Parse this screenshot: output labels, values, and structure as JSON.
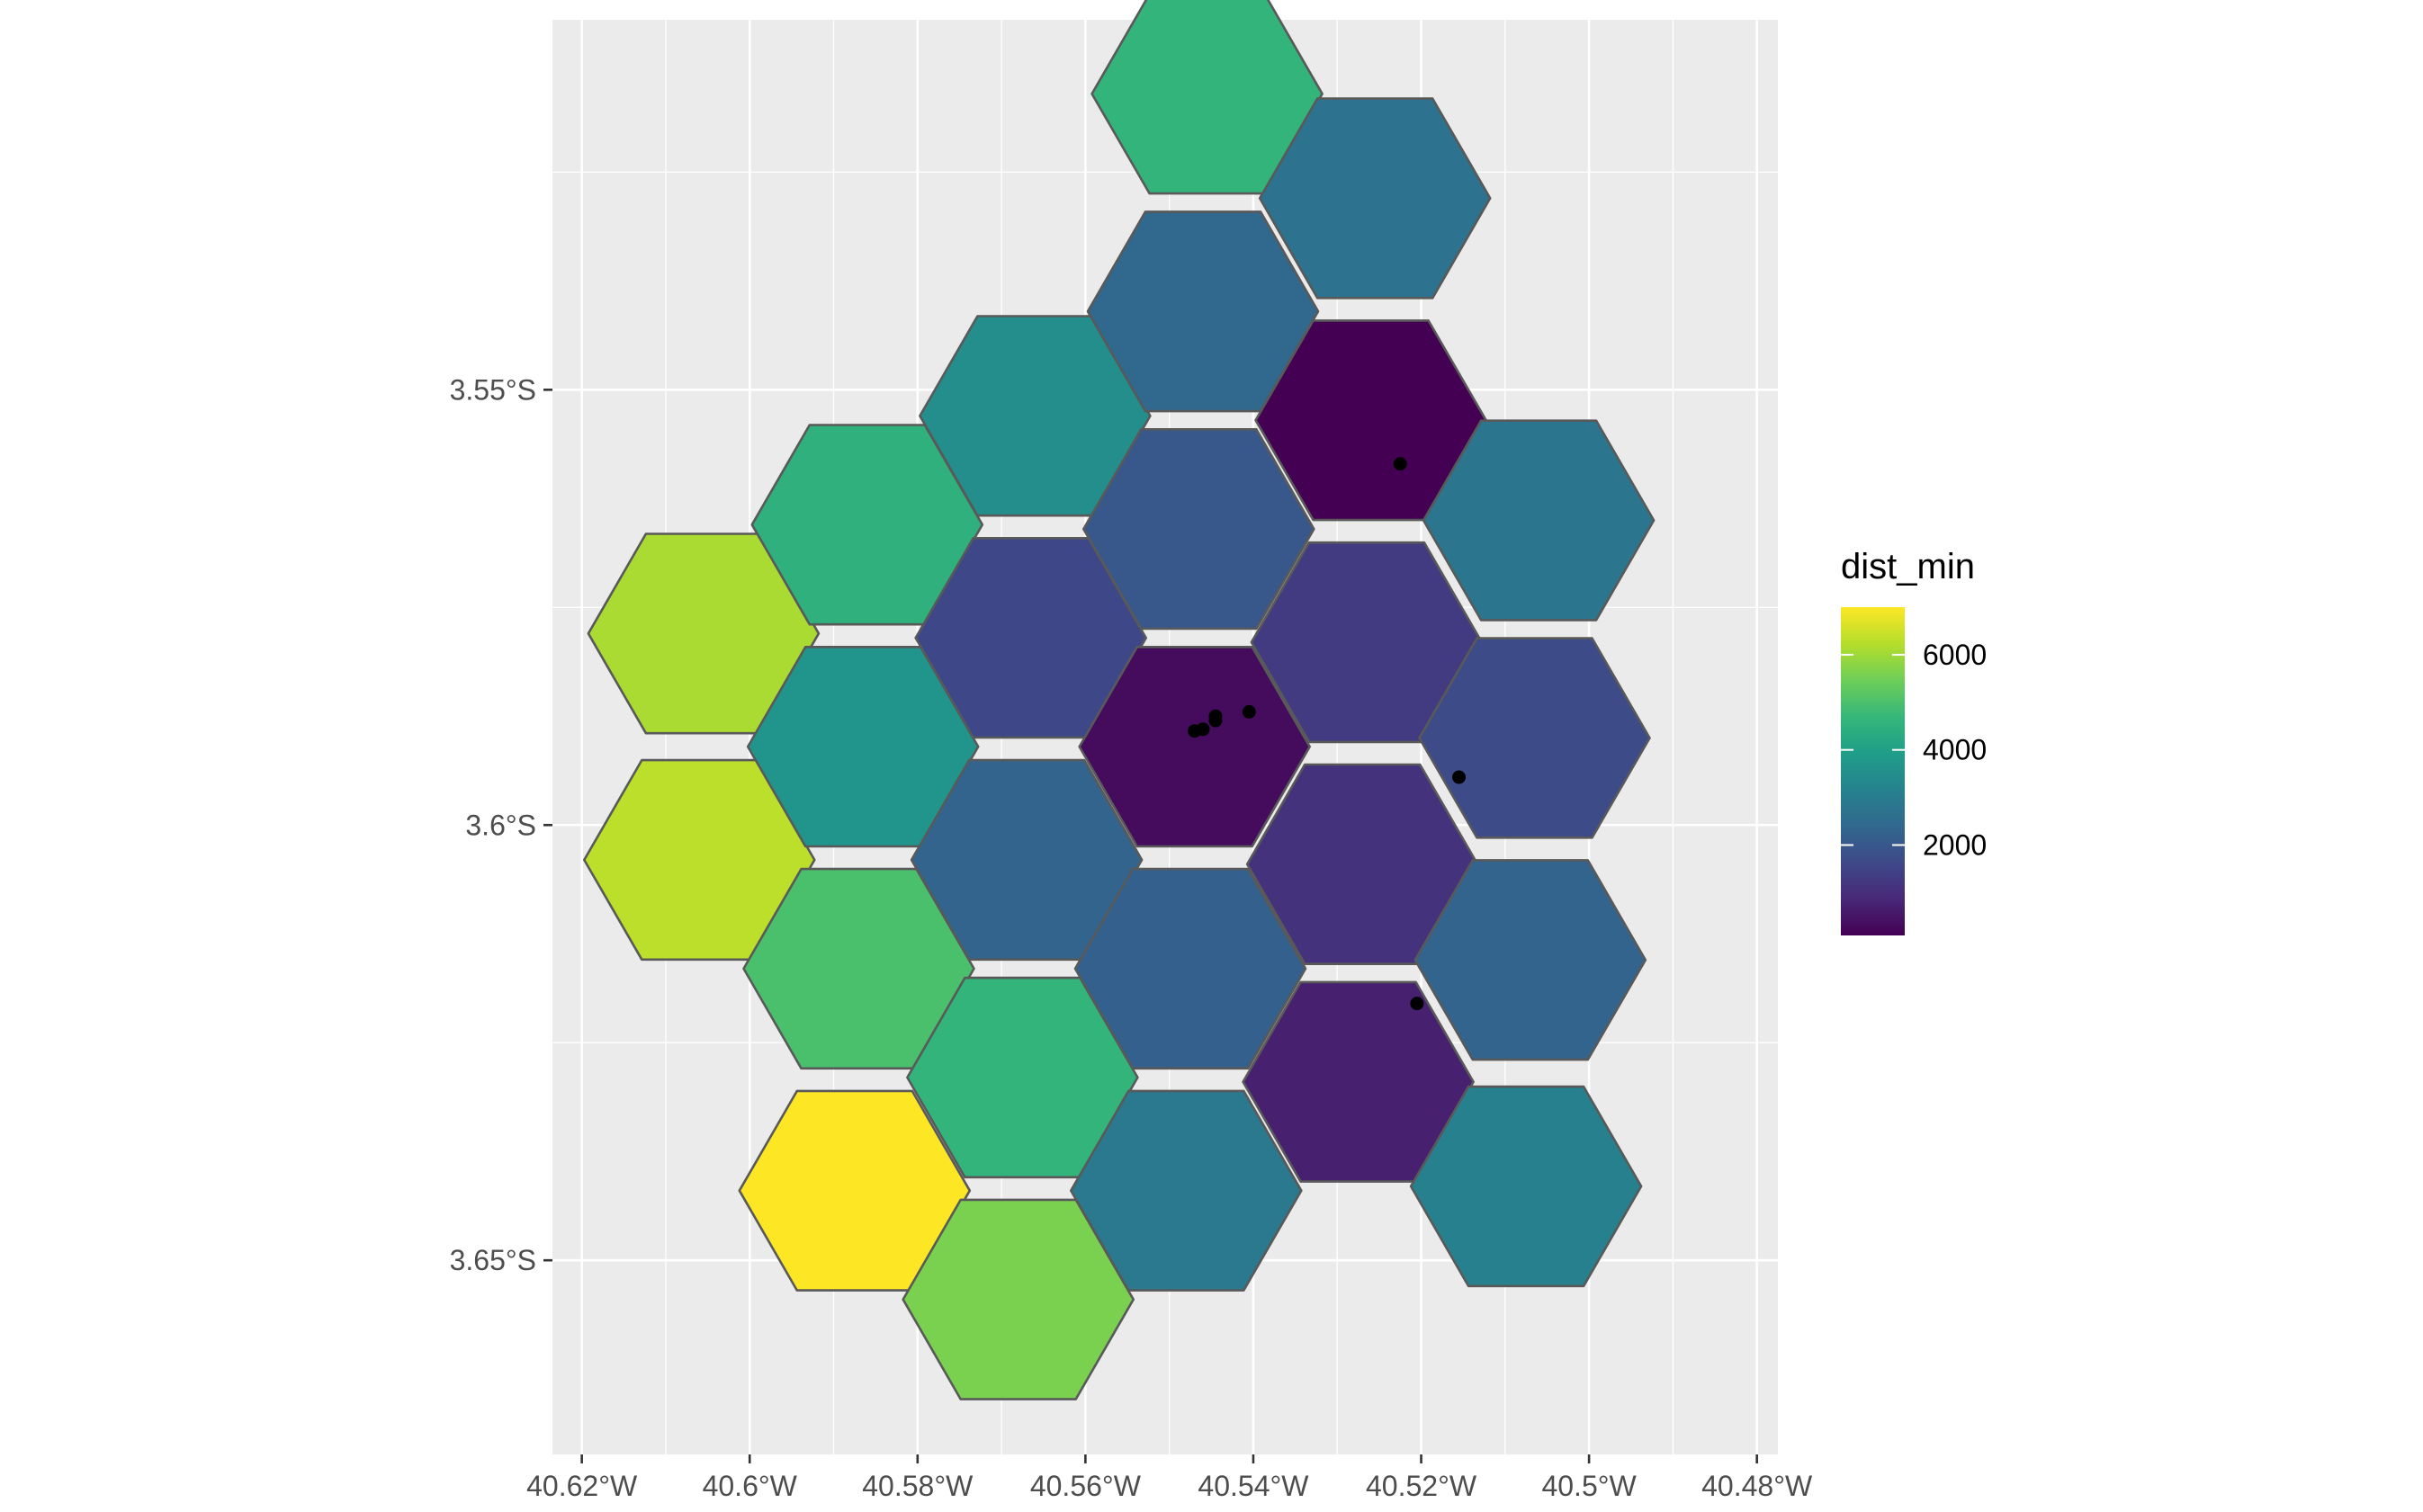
{
  "chart_data": {
    "type": "heatmap",
    "geometry": "hexagonal-grid-map",
    "x_axis": {
      "ticks": [
        -40.62,
        -40.6,
        -40.58,
        -40.56,
        -40.54,
        -40.52,
        -40.5,
        -40.48
      ],
      "tick_labels": [
        "40.62°W",
        "40.6°W",
        "40.58°W",
        "40.56°W",
        "40.54°W",
        "40.52°W",
        "40.5°W",
        "40.48°W"
      ]
    },
    "y_axis": {
      "ticks": [
        -3.55,
        -3.6,
        -3.65
      ],
      "tick_labels": [
        "3.55°S",
        "3.6°S",
        "3.65°S"
      ]
    },
    "xlim": [
      -40.6235,
      -40.4775
    ],
    "ylim": [
      -3.6723,
      -3.5075
    ],
    "grid": true,
    "background": "#ebebeb",
    "cells": [
      {
        "lon": -40.6055,
        "lat": -3.578,
        "dist_min": 6100
      },
      {
        "lon": -40.606,
        "lat": -3.604,
        "dist_min": 6300
      },
      {
        "lon": -40.586,
        "lat": -3.5655,
        "dist_min": 4500
      },
      {
        "lon": -40.5865,
        "lat": -3.591,
        "dist_min": 3700
      },
      {
        "lon": -40.587,
        "lat": -3.6165,
        "dist_min": 5000
      },
      {
        "lon": -40.5875,
        "lat": -3.642,
        "dist_min": 7000
      },
      {
        "lon": -40.566,
        "lat": -3.553,
        "dist_min": 3500
      },
      {
        "lon": -40.5665,
        "lat": -3.5785,
        "dist_min": 1600
      },
      {
        "lon": -40.567,
        "lat": -3.604,
        "dist_min": 2300
      },
      {
        "lon": -40.5675,
        "lat": -3.629,
        "dist_min": 4600
      },
      {
        "lon": -40.568,
        "lat": -3.6545,
        "dist_min": 5600
      },
      {
        "lon": -40.5455,
        "lat": -3.516,
        "dist_min": 4600
      },
      {
        "lon": -40.546,
        "lat": -3.541,
        "dist_min": 2400
      },
      {
        "lon": -40.5465,
        "lat": -3.566,
        "dist_min": 2000
      },
      {
        "lon": -40.547,
        "lat": -3.591,
        "dist_min": 300
      },
      {
        "lon": -40.5475,
        "lat": -3.6165,
        "dist_min": 2200
      },
      {
        "lon": -40.548,
        "lat": -3.642,
        "dist_min": 2900
      },
      {
        "lon": -40.5255,
        "lat": -3.528,
        "dist_min": 2700
      },
      {
        "lon": -40.526,
        "lat": -3.5535,
        "dist_min": 100
      },
      {
        "lon": -40.5265,
        "lat": -3.579,
        "dist_min": 1300
      },
      {
        "lon": -40.527,
        "lat": -3.6045,
        "dist_min": 1100
      },
      {
        "lon": -40.5275,
        "lat": -3.6295,
        "dist_min": 700
      },
      {
        "lon": -40.506,
        "lat": -3.565,
        "dist_min": 2800
      },
      {
        "lon": -40.5065,
        "lat": -3.59,
        "dist_min": 1700
      },
      {
        "lon": -40.507,
        "lat": -3.6155,
        "dist_min": 2300
      },
      {
        "lon": -40.5075,
        "lat": -3.6415,
        "dist_min": 3100
      }
    ],
    "points": [
      {
        "lon": -40.5225,
        "lat": -3.5585
      },
      {
        "lon": -40.5405,
        "lat": -3.587
      },
      {
        "lon": -40.5445,
        "lat": -3.5875
      },
      {
        "lon": -40.5445,
        "lat": -3.588
      },
      {
        "lon": -40.546,
        "lat": -3.589
      },
      {
        "lon": -40.547,
        "lat": -3.5892
      },
      {
        "lon": -40.5155,
        "lat": -3.5945
      },
      {
        "lon": -40.5205,
        "lat": -3.6205
      }
    ],
    "legend": {
      "title": "dist_min",
      "placement": "right",
      "ticks": [
        2000,
        4000,
        6000
      ],
      "tick_labels": [
        "2000",
        "4000",
        "6000"
      ],
      "range": [
        100,
        7000
      ],
      "colormap": [
        "#440154",
        "#482878",
        "#3e4989",
        "#31688e",
        "#26828e",
        "#1f9e89",
        "#35b779",
        "#6ece58",
        "#b5de2b",
        "#fde725"
      ]
    },
    "colors": {
      "hex_stroke": "#595959",
      "grid_line": "#ffffff",
      "axis_tick": "#333333",
      "point": "#000000"
    }
  }
}
